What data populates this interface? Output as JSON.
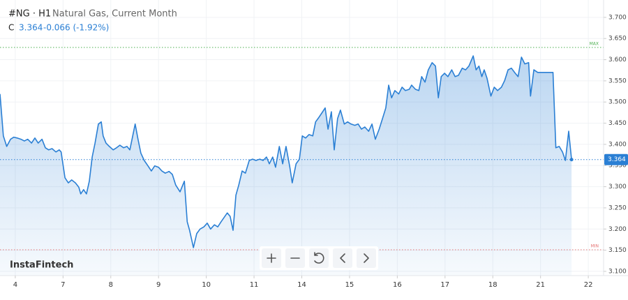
{
  "header": {
    "symbol": "#NG · H1",
    "name": "Natural Gas, Current Month",
    "close_label": "C",
    "close": 3.364,
    "change": "-0.066 (-1.92%)"
  },
  "watermark": "InstaFintech",
  "chart_data": {
    "type": "area",
    "color": "#2a7fd4",
    "grid": true,
    "x": [
      -0.32,
      -0.25,
      -0.18,
      -0.1,
      -0.03,
      0.04,
      0.12,
      0.19,
      0.26,
      0.34,
      0.41,
      0.48,
      0.56,
      0.63,
      0.7,
      0.77,
      0.85,
      0.92,
      0.96,
      1.04,
      1.11,
      1.18,
      1.26,
      1.33,
      1.37,
      1.43,
      1.49,
      1.55,
      1.61,
      1.67,
      1.74,
      1.8,
      1.84,
      1.9,
      1.97,
      2.05,
      2.12,
      2.19,
      2.27,
      2.34,
      2.4,
      2.46,
      2.51,
      2.57,
      2.63,
      2.7,
      2.78,
      2.85,
      2.92,
      3.0,
      3.07,
      3.14,
      3.22,
      3.29,
      3.36,
      3.45,
      3.54,
      3.57,
      3.6,
      3.65,
      3.73,
      3.8,
      3.87,
      3.95,
      4.02,
      4.09,
      4.17,
      4.24,
      4.31,
      4.39,
      4.44,
      4.5,
      4.56,
      4.62,
      4.68,
      4.75,
      4.82,
      4.9,
      4.97,
      5.04,
      5.12,
      5.19,
      5.26,
      5.32,
      5.39,
      5.45,
      5.53,
      5.6,
      5.67,
      5.75,
      5.8,
      5.88,
      5.95,
      6.01,
      6.08,
      6.15,
      6.23,
      6.29,
      6.36,
      6.42,
      6.49,
      6.55,
      6.62,
      6.68,
      6.75,
      6.81,
      6.89,
      6.96,
      7.03,
      7.11,
      7.18,
      7.25,
      7.32,
      7.4,
      7.47,
      7.54,
      7.62,
      7.69,
      7.76,
      7.82,
      7.88,
      7.95,
      8.03,
      8.1,
      8.17,
      8.25,
      8.3,
      8.38,
      8.45,
      8.51,
      8.58,
      8.65,
      8.73,
      8.8,
      8.86,
      8.92,
      8.99,
      9.06,
      9.14,
      9.21,
      9.28,
      9.36,
      9.43,
      9.5,
      9.59,
      9.65,
      9.71,
      9.77,
      9.82,
      9.88,
      9.96,
      10.03,
      10.1,
      10.18,
      10.25,
      10.32,
      10.39,
      10.47,
      10.53,
      10.6,
      10.67,
      10.75,
      10.79,
      10.86,
      10.94,
      11.26,
      11.32,
      11.39,
      11.46,
      11.52,
      11.59,
      11.65
    ],
    "values": [
      3.519,
      3.42,
      3.395,
      3.412,
      3.417,
      3.415,
      3.412,
      3.408,
      3.412,
      3.403,
      3.415,
      3.403,
      3.412,
      3.392,
      3.387,
      3.39,
      3.382,
      3.387,
      3.382,
      3.321,
      3.309,
      3.316,
      3.309,
      3.299,
      3.283,
      3.293,
      3.283,
      3.313,
      3.37,
      3.403,
      3.448,
      3.453,
      3.42,
      3.403,
      3.395,
      3.387,
      3.392,
      3.398,
      3.392,
      3.395,
      3.387,
      3.42,
      3.448,
      3.412,
      3.379,
      3.362,
      3.349,
      3.337,
      3.349,
      3.346,
      3.337,
      3.332,
      3.336,
      3.329,
      3.304,
      3.288,
      3.313,
      3.266,
      3.217,
      3.197,
      3.156,
      3.189,
      3.2,
      3.205,
      3.214,
      3.2,
      3.21,
      3.205,
      3.217,
      3.23,
      3.238,
      3.23,
      3.197,
      3.28,
      3.304,
      3.337,
      3.332,
      3.362,
      3.365,
      3.362,
      3.365,
      3.362,
      3.37,
      3.354,
      3.37,
      3.346,
      3.395,
      3.354,
      3.395,
      3.346,
      3.309,
      3.354,
      3.365,
      3.42,
      3.415,
      3.423,
      3.42,
      3.453,
      3.464,
      3.474,
      3.486,
      3.436,
      3.477,
      3.387,
      3.461,
      3.481,
      3.448,
      3.453,
      3.448,
      3.445,
      3.448,
      3.436,
      3.441,
      3.431,
      3.448,
      3.412,
      3.436,
      3.461,
      3.486,
      3.54,
      3.51,
      3.527,
      3.519,
      3.535,
      3.527,
      3.53,
      3.54,
      3.53,
      3.527,
      3.56,
      3.547,
      3.576,
      3.593,
      3.585,
      3.51,
      3.56,
      3.568,
      3.56,
      3.576,
      3.56,
      3.563,
      3.58,
      3.576,
      3.585,
      3.609,
      3.576,
      3.585,
      3.56,
      3.576,
      3.556,
      3.514,
      3.535,
      3.527,
      3.535,
      3.551,
      3.576,
      3.58,
      3.568,
      3.56,
      3.606,
      3.59,
      3.593,
      3.514,
      3.576,
      3.57,
      3.57,
      3.392,
      3.395,
      3.382,
      3.362,
      3.431,
      3.364
    ],
    "xlim": [
      -0.32,
      12.32
    ],
    "xticks": [
      {
        "value": 0,
        "label": "4"
      },
      {
        "value": 1,
        "label": "7"
      },
      {
        "value": 2,
        "label": "8"
      },
      {
        "value": 3,
        "label": "9"
      },
      {
        "value": 4,
        "label": "10"
      },
      {
        "value": 5,
        "label": "11"
      },
      {
        "value": 6,
        "label": "14"
      },
      {
        "value": 7,
        "label": "15"
      },
      {
        "value": 8,
        "label": "16"
      },
      {
        "value": 9,
        "label": "17"
      },
      {
        "value": 10,
        "label": "18"
      },
      {
        "value": 11,
        "label": "21"
      },
      {
        "value": 12,
        "label": "22"
      }
    ],
    "ylim": [
      3.09,
      3.741
    ],
    "yticks": [
      {
        "value": 3.1,
        "label": "3.100"
      },
      {
        "value": 3.15,
        "label": "3.150"
      },
      {
        "value": 3.2,
        "label": "3.200"
      },
      {
        "value": 3.25,
        "label": "3.250"
      },
      {
        "value": 3.3,
        "label": "3.300"
      },
      {
        "value": 3.35,
        "label": "3.350"
      },
      {
        "value": 3.4,
        "label": "3.400"
      },
      {
        "value": 3.45,
        "label": "3.450"
      },
      {
        "value": 3.5,
        "label": "3.500"
      },
      {
        "value": 3.55,
        "label": "3.550"
      },
      {
        "value": 3.6,
        "label": "3.600"
      },
      {
        "value": 3.65,
        "label": "3.650"
      },
      {
        "value": 3.7,
        "label": "3.700"
      }
    ],
    "max_line": {
      "value": 3.629,
      "label": "MAX",
      "color": "#4caf50"
    },
    "min_line": {
      "value": 3.151,
      "label": "MIN",
      "color": "#e57373"
    },
    "last_price": 3.364
  }
}
